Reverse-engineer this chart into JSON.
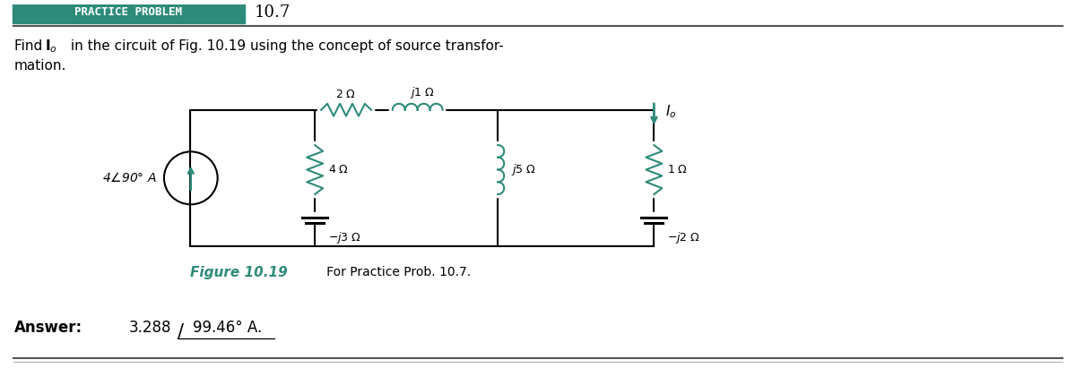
{
  "title_box_text": "PRACTICE PROBLEM",
  "title_number": "10.7",
  "title_box_color": "#2e8b7a",
  "title_box_text_color": "#ffffff",
  "title_number_color": "#000000",
  "figure_label": "Figure 10.19",
  "figure_label_color": "#2e8b7a",
  "figure_caption": "   For Practice Prob. 10.7.",
  "bg_color": "#ffffff",
  "circuit_wire_color": "#2e8b7a",
  "header_line_color": "#555555",
  "bottom_line_color": "#555555"
}
